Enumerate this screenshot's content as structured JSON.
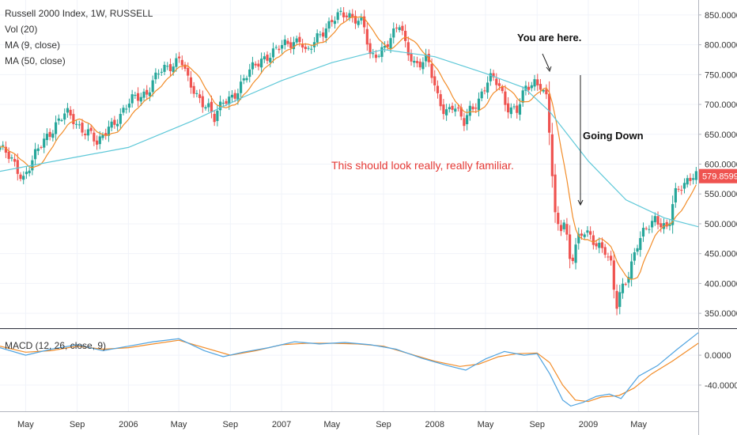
{
  "header": {
    "title": "Russell 2000 Index, 1W, RUSSELL",
    "studies": [
      "Vol (20)",
      "MA (9, close)",
      "MA (50, close)"
    ],
    "macd_label": "MACD (12, 26, close, 9)"
  },
  "annotations": {
    "you_are_here": "You are here.",
    "going_down": "Going Down",
    "familiar": "This should look really, really familiar."
  },
  "colors": {
    "up": "#26a69a",
    "down": "#ef5350",
    "ma9": "#f28c28",
    "ma50": "#5ec8d8",
    "macd": "#4fa3e0",
    "signal": "#f28c28",
    "grid": "#f0f3fa",
    "annotation_red": "#e53935",
    "price_tag": "#ef5350"
  },
  "chart_data": {
    "type": "candlestick",
    "price_axis": {
      "ticks": [
        850,
        800,
        750,
        700,
        650,
        600,
        550,
        500,
        450,
        400,
        350
      ],
      "tick_labels": [
        "850.0000",
        "800.0000",
        "750.0000",
        "700.0000",
        "650.0000",
        "600.0000",
        "550.0000",
        "500.0000",
        "450.0000",
        "400.0000",
        "350.0000"
      ],
      "range": [
        325,
        875
      ],
      "last_price": "579.8599"
    },
    "macd_axis": {
      "ticks": [
        0,
        -40
      ],
      "tick_labels": [
        "0.0000",
        "-40.0000"
      ],
      "range": [
        -75,
        35
      ]
    },
    "x_axis": {
      "range": [
        "2005-03-01",
        "2009-09-20"
      ],
      "ticks": [
        {
          "label": "May",
          "date": "2005-05-01"
        },
        {
          "label": "Sep",
          "date": "2005-09-01"
        },
        {
          "label": "2006",
          "date": "2006-01-01"
        },
        {
          "label": "May",
          "date": "2006-05-01"
        },
        {
          "label": "Sep",
          "date": "2006-09-01"
        },
        {
          "label": "2007",
          "date": "2007-01-01"
        },
        {
          "label": "May",
          "date": "2007-05-01"
        },
        {
          "label": "Sep",
          "date": "2007-09-01"
        },
        {
          "label": "2008",
          "date": "2008-01-01"
        },
        {
          "label": "May",
          "date": "2008-05-01"
        },
        {
          "label": "Sep",
          "date": "2008-09-01"
        },
        {
          "label": "2009",
          "date": "2009-01-01"
        },
        {
          "label": "May",
          "date": "2009-05-01"
        }
      ]
    },
    "close_series": [
      [
        "2005-03-01",
        628
      ],
      [
        "2005-04-01",
        602
      ],
      [
        "2005-04-25",
        578
      ],
      [
        "2005-05-15",
        603
      ],
      [
        "2005-06-15",
        640
      ],
      [
        "2005-07-15",
        672
      ],
      [
        "2005-08-05",
        685
      ],
      [
        "2005-09-01",
        665
      ],
      [
        "2005-10-01",
        655
      ],
      [
        "2005-10-20",
        628
      ],
      [
        "2005-11-15",
        665
      ],
      [
        "2005-12-15",
        682
      ],
      [
        "2006-01-15",
        712
      ],
      [
        "2006-02-15",
        722
      ],
      [
        "2006-03-15",
        752
      ],
      [
        "2006-04-15",
        768
      ],
      [
        "2006-05-05",
        782
      ],
      [
        "2006-05-25",
        732
      ],
      [
        "2006-06-15",
        712
      ],
      [
        "2006-07-10",
        700
      ],
      [
        "2006-07-25",
        675
      ],
      [
        "2006-08-15",
        702
      ],
      [
        "2006-09-15",
        722
      ],
      [
        "2006-10-15",
        752
      ],
      [
        "2006-11-15",
        778
      ],
      [
        "2006-12-15",
        788
      ],
      [
        "2007-01-15",
        802
      ],
      [
        "2007-02-15",
        812
      ],
      [
        "2007-03-01",
        780
      ],
      [
        "2007-04-01",
        818
      ],
      [
        "2007-05-01",
        842
      ],
      [
        "2007-05-25",
        848
      ],
      [
        "2007-06-25",
        848
      ],
      [
        "2007-07-15",
        838
      ],
      [
        "2007-08-01",
        772
      ],
      [
        "2007-08-20",
        785
      ],
      [
        "2007-09-15",
        812
      ],
      [
        "2007-10-10",
        832
      ],
      [
        "2007-10-25",
        792
      ],
      [
        "2007-11-15",
        770
      ],
      [
        "2007-12-15",
        775
      ],
      [
        "2008-01-05",
        715
      ],
      [
        "2008-01-25",
        690
      ],
      [
        "2008-02-15",
        700
      ],
      [
        "2008-03-10",
        665
      ],
      [
        "2008-03-25",
        692
      ],
      [
        "2008-04-15",
        710
      ],
      [
        "2008-05-10",
        742
      ],
      [
        "2008-06-01",
        735
      ],
      [
        "2008-06-20",
        700
      ],
      [
        "2008-07-15",
        688
      ],
      [
        "2008-08-05",
        725
      ],
      [
        "2008-08-25",
        740
      ],
      [
        "2008-09-10",
        735
      ],
      [
        "2008-09-25",
        705
      ],
      [
        "2008-10-05",
        600
      ],
      [
        "2008-10-15",
        500
      ],
      [
        "2008-10-25",
        490
      ],
      [
        "2008-11-05",
        510
      ],
      [
        "2008-11-20",
        435
      ],
      [
        "2008-12-05",
        470
      ],
      [
        "2008-12-25",
        485
      ],
      [
        "2009-01-10",
        475
      ],
      [
        "2009-01-25",
        468
      ],
      [
        "2009-02-10",
        455
      ],
      [
        "2009-02-25",
        425
      ],
      [
        "2009-03-08",
        355
      ],
      [
        "2009-03-20",
        390
      ],
      [
        "2009-04-10",
        425
      ],
      [
        "2009-04-25",
        460
      ],
      [
        "2009-05-15",
        485
      ],
      [
        "2009-06-10",
        512
      ],
      [
        "2009-06-25",
        502
      ],
      [
        "2009-07-10",
        488
      ],
      [
        "2009-07-25",
        545
      ],
      [
        "2009-08-15",
        568
      ],
      [
        "2009-09-10",
        586
      ],
      [
        "2009-09-20",
        580
      ]
    ],
    "ma50_series": [
      [
        "2005-03-01",
        588
      ],
      [
        "2005-09-01",
        612
      ],
      [
        "2006-01-01",
        628
      ],
      [
        "2006-06-01",
        672
      ],
      [
        "2006-10-01",
        712
      ],
      [
        "2007-01-01",
        740
      ],
      [
        "2007-05-01",
        770
      ],
      [
        "2007-09-01",
        792
      ],
      [
        "2008-01-01",
        780
      ],
      [
        "2008-05-01",
        752
      ],
      [
        "2008-08-01",
        728
      ],
      [
        "2008-10-01",
        688
      ],
      [
        "2009-01-01",
        605
      ],
      [
        "2009-04-01",
        540
      ],
      [
        "2009-07-01",
        510
      ],
      [
        "2009-09-20",
        495
      ]
    ],
    "macd": [
      [
        "2005-03-01",
        10
      ],
      [
        "2005-05-01",
        0
      ],
      [
        "2005-07-01",
        8
      ],
      [
        "2005-09-01",
        14
      ],
      [
        "2005-11-01",
        6
      ],
      [
        "2006-01-01",
        12
      ],
      [
        "2006-03-01",
        18
      ],
      [
        "2006-05-01",
        22
      ],
      [
        "2006-07-01",
        6
      ],
      [
        "2006-08-15",
        -2
      ],
      [
        "2006-10-01",
        4
      ],
      [
        "2006-12-01",
        10
      ],
      [
        "2007-02-01",
        18
      ],
      [
        "2007-04-01",
        15
      ],
      [
        "2007-06-01",
        17
      ],
      [
        "2007-08-01",
        14
      ],
      [
        "2007-10-01",
        8
      ],
      [
        "2007-12-01",
        -4
      ],
      [
        "2008-02-01",
        -14
      ],
      [
        "2008-03-15",
        -20
      ],
      [
        "2008-05-01",
        -5
      ],
      [
        "2008-06-15",
        5
      ],
      [
        "2008-08-01",
        0
      ],
      [
        "2008-09-01",
        2
      ],
      [
        "2008-10-01",
        -25
      ],
      [
        "2008-11-01",
        -60
      ],
      [
        "2008-11-20",
        -68
      ],
      [
        "2008-12-20",
        -63
      ],
      [
        "2009-01-20",
        -55
      ],
      [
        "2009-02-20",
        -52
      ],
      [
        "2009-03-20",
        -58
      ],
      [
        "2009-05-01",
        -28
      ],
      [
        "2009-06-15",
        -14
      ],
      [
        "2009-08-01",
        8
      ],
      [
        "2009-09-20",
        30
      ]
    ],
    "signal": [
      [
        "2005-03-01",
        12
      ],
      [
        "2005-05-01",
        4
      ],
      [
        "2005-07-01",
        6
      ],
      [
        "2005-09-01",
        12
      ],
      [
        "2005-11-01",
        8
      ],
      [
        "2006-01-01",
        10
      ],
      [
        "2006-03-01",
        15
      ],
      [
        "2006-05-01",
        20
      ],
      [
        "2006-07-01",
        10
      ],
      [
        "2006-09-01",
        0
      ],
      [
        "2006-11-01",
        6
      ],
      [
        "2007-01-01",
        14
      ],
      [
        "2007-03-01",
        16
      ],
      [
        "2007-05-01",
        16
      ],
      [
        "2007-07-01",
        15
      ],
      [
        "2007-09-01",
        12
      ],
      [
        "2007-11-01",
        2
      ],
      [
        "2008-01-01",
        -8
      ],
      [
        "2008-03-01",
        -15
      ],
      [
        "2008-04-15",
        -12
      ],
      [
        "2008-06-01",
        -2
      ],
      [
        "2008-07-15",
        2
      ],
      [
        "2008-09-01",
        3
      ],
      [
        "2008-10-01",
        -10
      ],
      [
        "2008-11-01",
        -40
      ],
      [
        "2008-12-01",
        -60
      ],
      [
        "2009-01-01",
        -62
      ],
      [
        "2009-02-01",
        -56
      ],
      [
        "2009-03-15",
        -54
      ],
      [
        "2009-04-20",
        -44
      ],
      [
        "2009-06-01",
        -25
      ],
      [
        "2009-07-20",
        -8
      ],
      [
        "2009-09-20",
        16
      ]
    ]
  }
}
